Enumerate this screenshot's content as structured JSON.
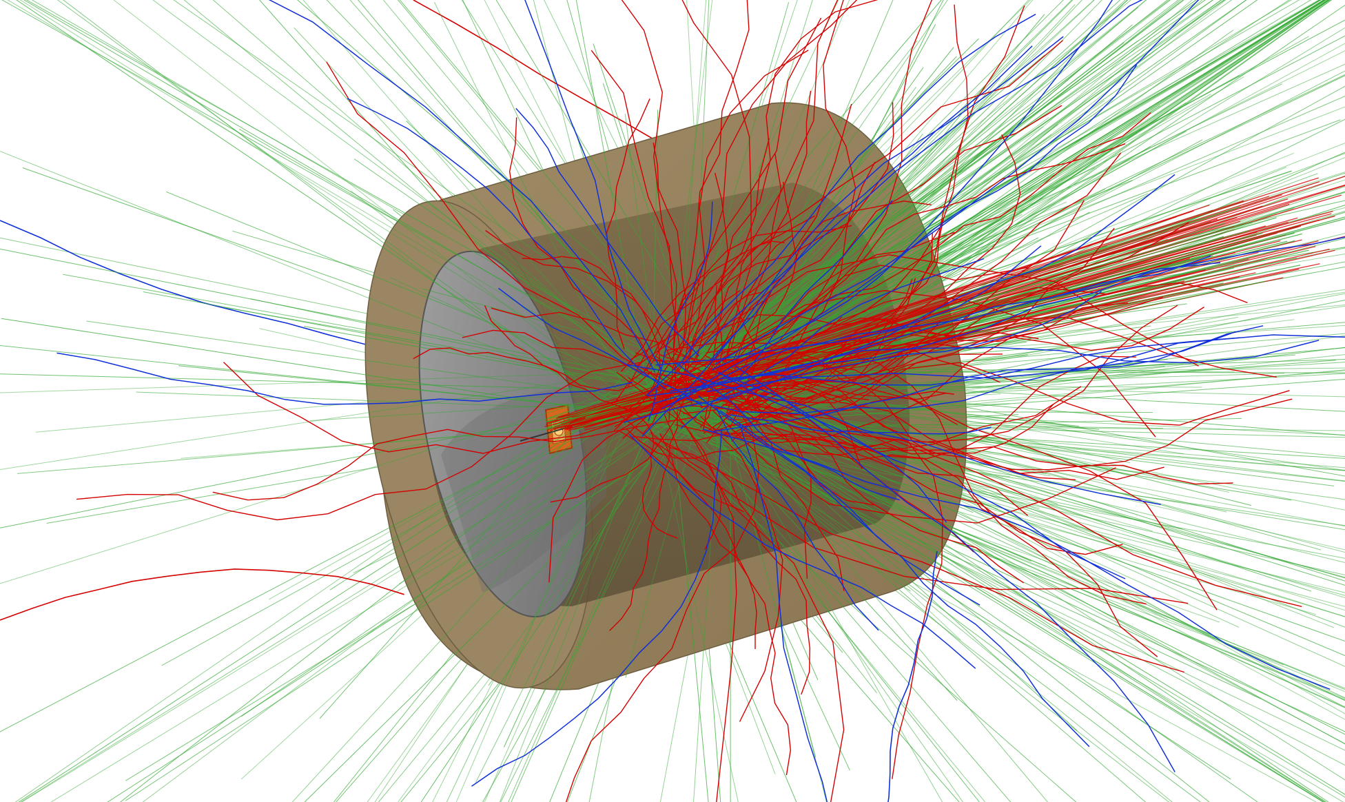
{
  "scene": {
    "background_color": "#ffffff",
    "description_tags": [
      "particle-shower",
      "cylindrical-detector",
      "track-visualization"
    ],
    "track_colors": {
      "gamma": "#33a833",
      "negative": "#d40000",
      "positive": "#1030d8"
    },
    "detector_colors": {
      "outer_shell": "#9b8663",
      "outer_shell_dark": "#7d6b4c",
      "inner_wall": "#6e6042",
      "bore": "#8f8f8f",
      "bore_inner": "#6f6f6f",
      "target": "#d9661f"
    },
    "track_counts": {
      "gamma": 520,
      "negative": 120,
      "positive": 40
    },
    "random_seed": 1234
  }
}
